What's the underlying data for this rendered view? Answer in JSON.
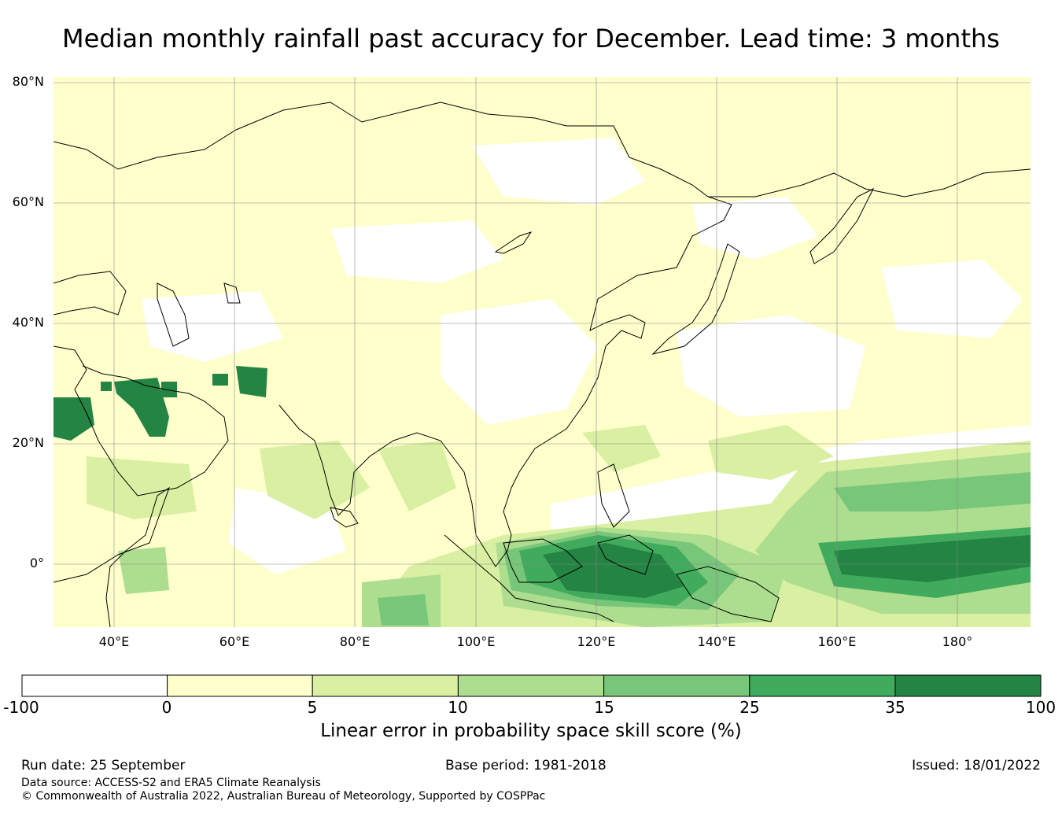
{
  "title": "Median monthly rainfall past accuracy for December. Lead time: 3 months",
  "map": {
    "region": "Asia and western Pacific",
    "lat_labels": [
      "80°N",
      "60°N",
      "40°N",
      "20°N",
      "0°"
    ],
    "lon_labels": [
      "40°E",
      "60°E",
      "80°E",
      "100°E",
      "120°E",
      "140°E",
      "160°E",
      "180°"
    ]
  },
  "colorbar": {
    "ticks": [
      "-100",
      "0",
      "5",
      "10",
      "15",
      "25",
      "35",
      "100"
    ],
    "colors": [
      "#ffffff",
      "#ffffcc",
      "#d9f0a3",
      "#addd8e",
      "#78c679",
      "#41ab5d",
      "#238443"
    ],
    "label": "Linear error in probability space skill score (%)"
  },
  "footer": {
    "run_date": "Run date: 25 September",
    "base_period": "Base period: 1981-2018",
    "issued": "Issued: 18/01/2022",
    "data_source": "Data source: ACCESS-S2 and ERA5 Climate Reanalysis",
    "copyright": "© Commonwealth of Australia 2022, Australian Bureau of Meteorology, Supported by COSPPac"
  }
}
